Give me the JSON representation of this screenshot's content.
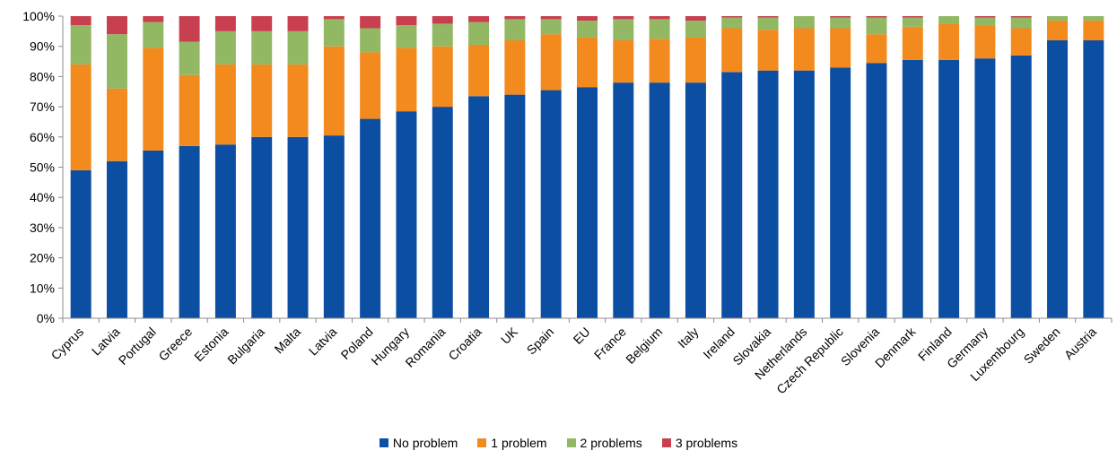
{
  "chart_data": {
    "type": "bar",
    "stacked": true,
    "title": "",
    "xlabel": "",
    "ylabel": "",
    "ylim": [
      0,
      100
    ],
    "y_ticks": [
      "0%",
      "10%",
      "20%",
      "30%",
      "40%",
      "50%",
      "60%",
      "70%",
      "80%",
      "90%",
      "100%"
    ],
    "grid": false,
    "legend_position": "bottom",
    "categories": [
      "Cyprus",
      "Latvia",
      "Portugal",
      "Greece",
      "Estonia",
      "Bulgaria",
      "Malta",
      "Latvia",
      "Poland",
      "Hungary",
      "Romania",
      "Croatia",
      "UK",
      "Spain",
      "EU",
      "France",
      "Belgium",
      "Italy",
      "Ireland",
      "Slovakia",
      "Netherlands",
      "Czech Republic",
      "Slovenia",
      "Denmark",
      "Finland",
      "Germany",
      "Luxembourg",
      "Sweden",
      "Austria"
    ],
    "series": [
      {
        "name": "No problem",
        "color": "#0b4ea2",
        "values": [
          49,
          52,
          55.5,
          57,
          57.5,
          60,
          60,
          60.5,
          66,
          68.5,
          70,
          73.5,
          74,
          75.5,
          76.5,
          78,
          78,
          78,
          81.5,
          82,
          82,
          83,
          84.5,
          85.5,
          85.5,
          86,
          87,
          92,
          92
        ]
      },
      {
        "name": "1 problem",
        "color": "#f28a1e",
        "values": [
          35,
          24,
          34,
          23.5,
          26.5,
          24,
          24,
          29.5,
          22,
          21,
          20,
          17,
          18,
          18.5,
          16.5,
          14,
          14.5,
          15,
          14.5,
          13.5,
          14,
          13,
          9.5,
          11,
          12,
          11,
          9,
          6.5,
          6.5
        ]
      },
      {
        "name": "2 problems",
        "color": "#93b864",
        "values": [
          13,
          18,
          8.5,
          11,
          11,
          11,
          11,
          9,
          8,
          7.5,
          7.5,
          7.5,
          7,
          5,
          5.5,
          7,
          6.5,
          5.5,
          3.5,
          4,
          4,
          3.5,
          5.5,
          3,
          2.5,
          2.5,
          3.5,
          1.5,
          1.5
        ]
      },
      {
        "name": "3 problems",
        "color": "#c8404f",
        "values": [
          3,
          6,
          2,
          8.5,
          5,
          5,
          5,
          1,
          4,
          3,
          2.5,
          2,
          1,
          1,
          1.5,
          1,
          1,
          1.5,
          0.5,
          0.5,
          0,
          0.5,
          0.5,
          0.5,
          0,
          0.5,
          0.5,
          0,
          0
        ]
      }
    ]
  }
}
